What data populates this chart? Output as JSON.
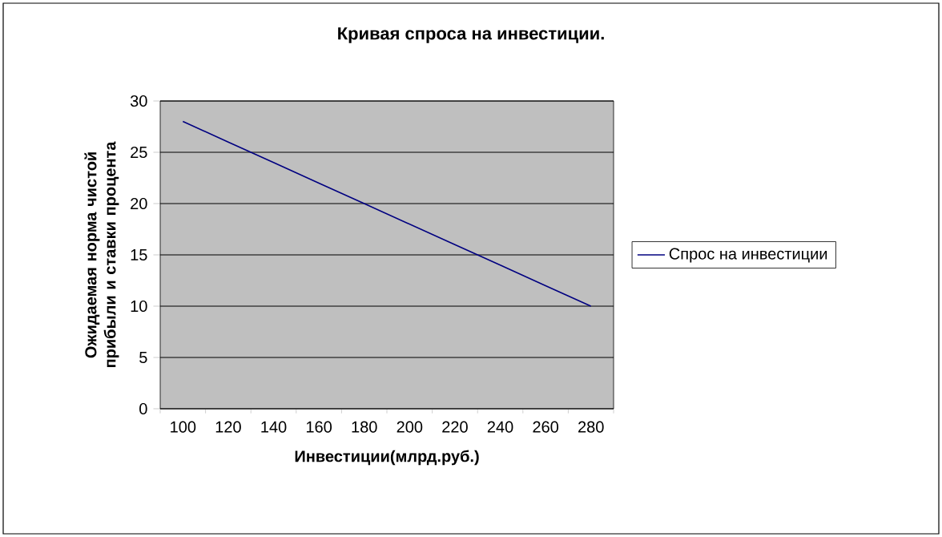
{
  "chart_data": {
    "type": "line",
    "title": "Кривая спроса на инвестиции.",
    "xlabel": "Инвестиции(млрд.руб.)",
    "ylabel": "Ожидаемая норма чистой прибыли и ставки процента",
    "categories": [
      "100",
      "120",
      "140",
      "160",
      "180",
      "200",
      "220",
      "240",
      "260",
      "280"
    ],
    "series": [
      {
        "name": "Спрос на инвестиции",
        "color": "#000080",
        "values": [
          28,
          26,
          24,
          22,
          20,
          18,
          16,
          14,
          12,
          10
        ]
      }
    ],
    "ylim": [
      0,
      30
    ],
    "yticks": [
      0,
      5,
      10,
      15,
      20,
      25,
      30
    ],
    "grid": "y",
    "legend": "right",
    "marker": "none",
    "line_style": "solid"
  }
}
